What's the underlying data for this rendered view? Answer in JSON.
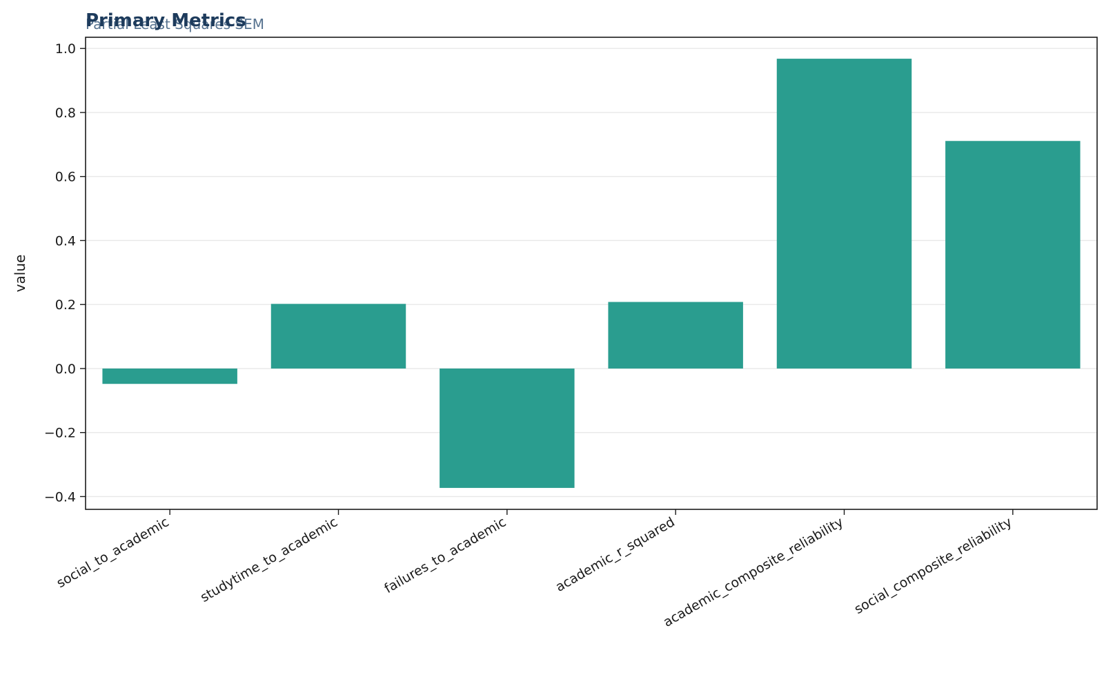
{
  "chart_data": {
    "type": "bar",
    "title": "Primary Metrics",
    "subtitle": "Partial Least Squares SEM",
    "xlabel": "",
    "ylabel": "value",
    "categories": [
      "social_to_academic",
      "studytime_to_academic",
      "failures_to_academic",
      "academic_r_squared",
      "academic_composite_reliability",
      "social_composite_reliability"
    ],
    "values": [
      -0.048,
      0.202,
      -0.373,
      0.208,
      0.968,
      0.711
    ],
    "ylim": [
      -0.44,
      1.035
    ],
    "yticks": [
      -0.4,
      -0.2,
      0.0,
      0.2,
      0.4,
      0.6,
      0.8,
      1.0
    ],
    "ytick_labels": [
      "−0.4",
      "−0.2",
      "0.0",
      "0.2",
      "0.4",
      "0.6",
      "0.8",
      "1.0"
    ],
    "grid": "horizontal",
    "legend": "none",
    "colors": {
      "bar": "#2a9d8f",
      "title": "#1d3b5c",
      "subtitle": "#56728f",
      "grid": "#e8e8e8",
      "axis": "#1a1a1a"
    }
  }
}
